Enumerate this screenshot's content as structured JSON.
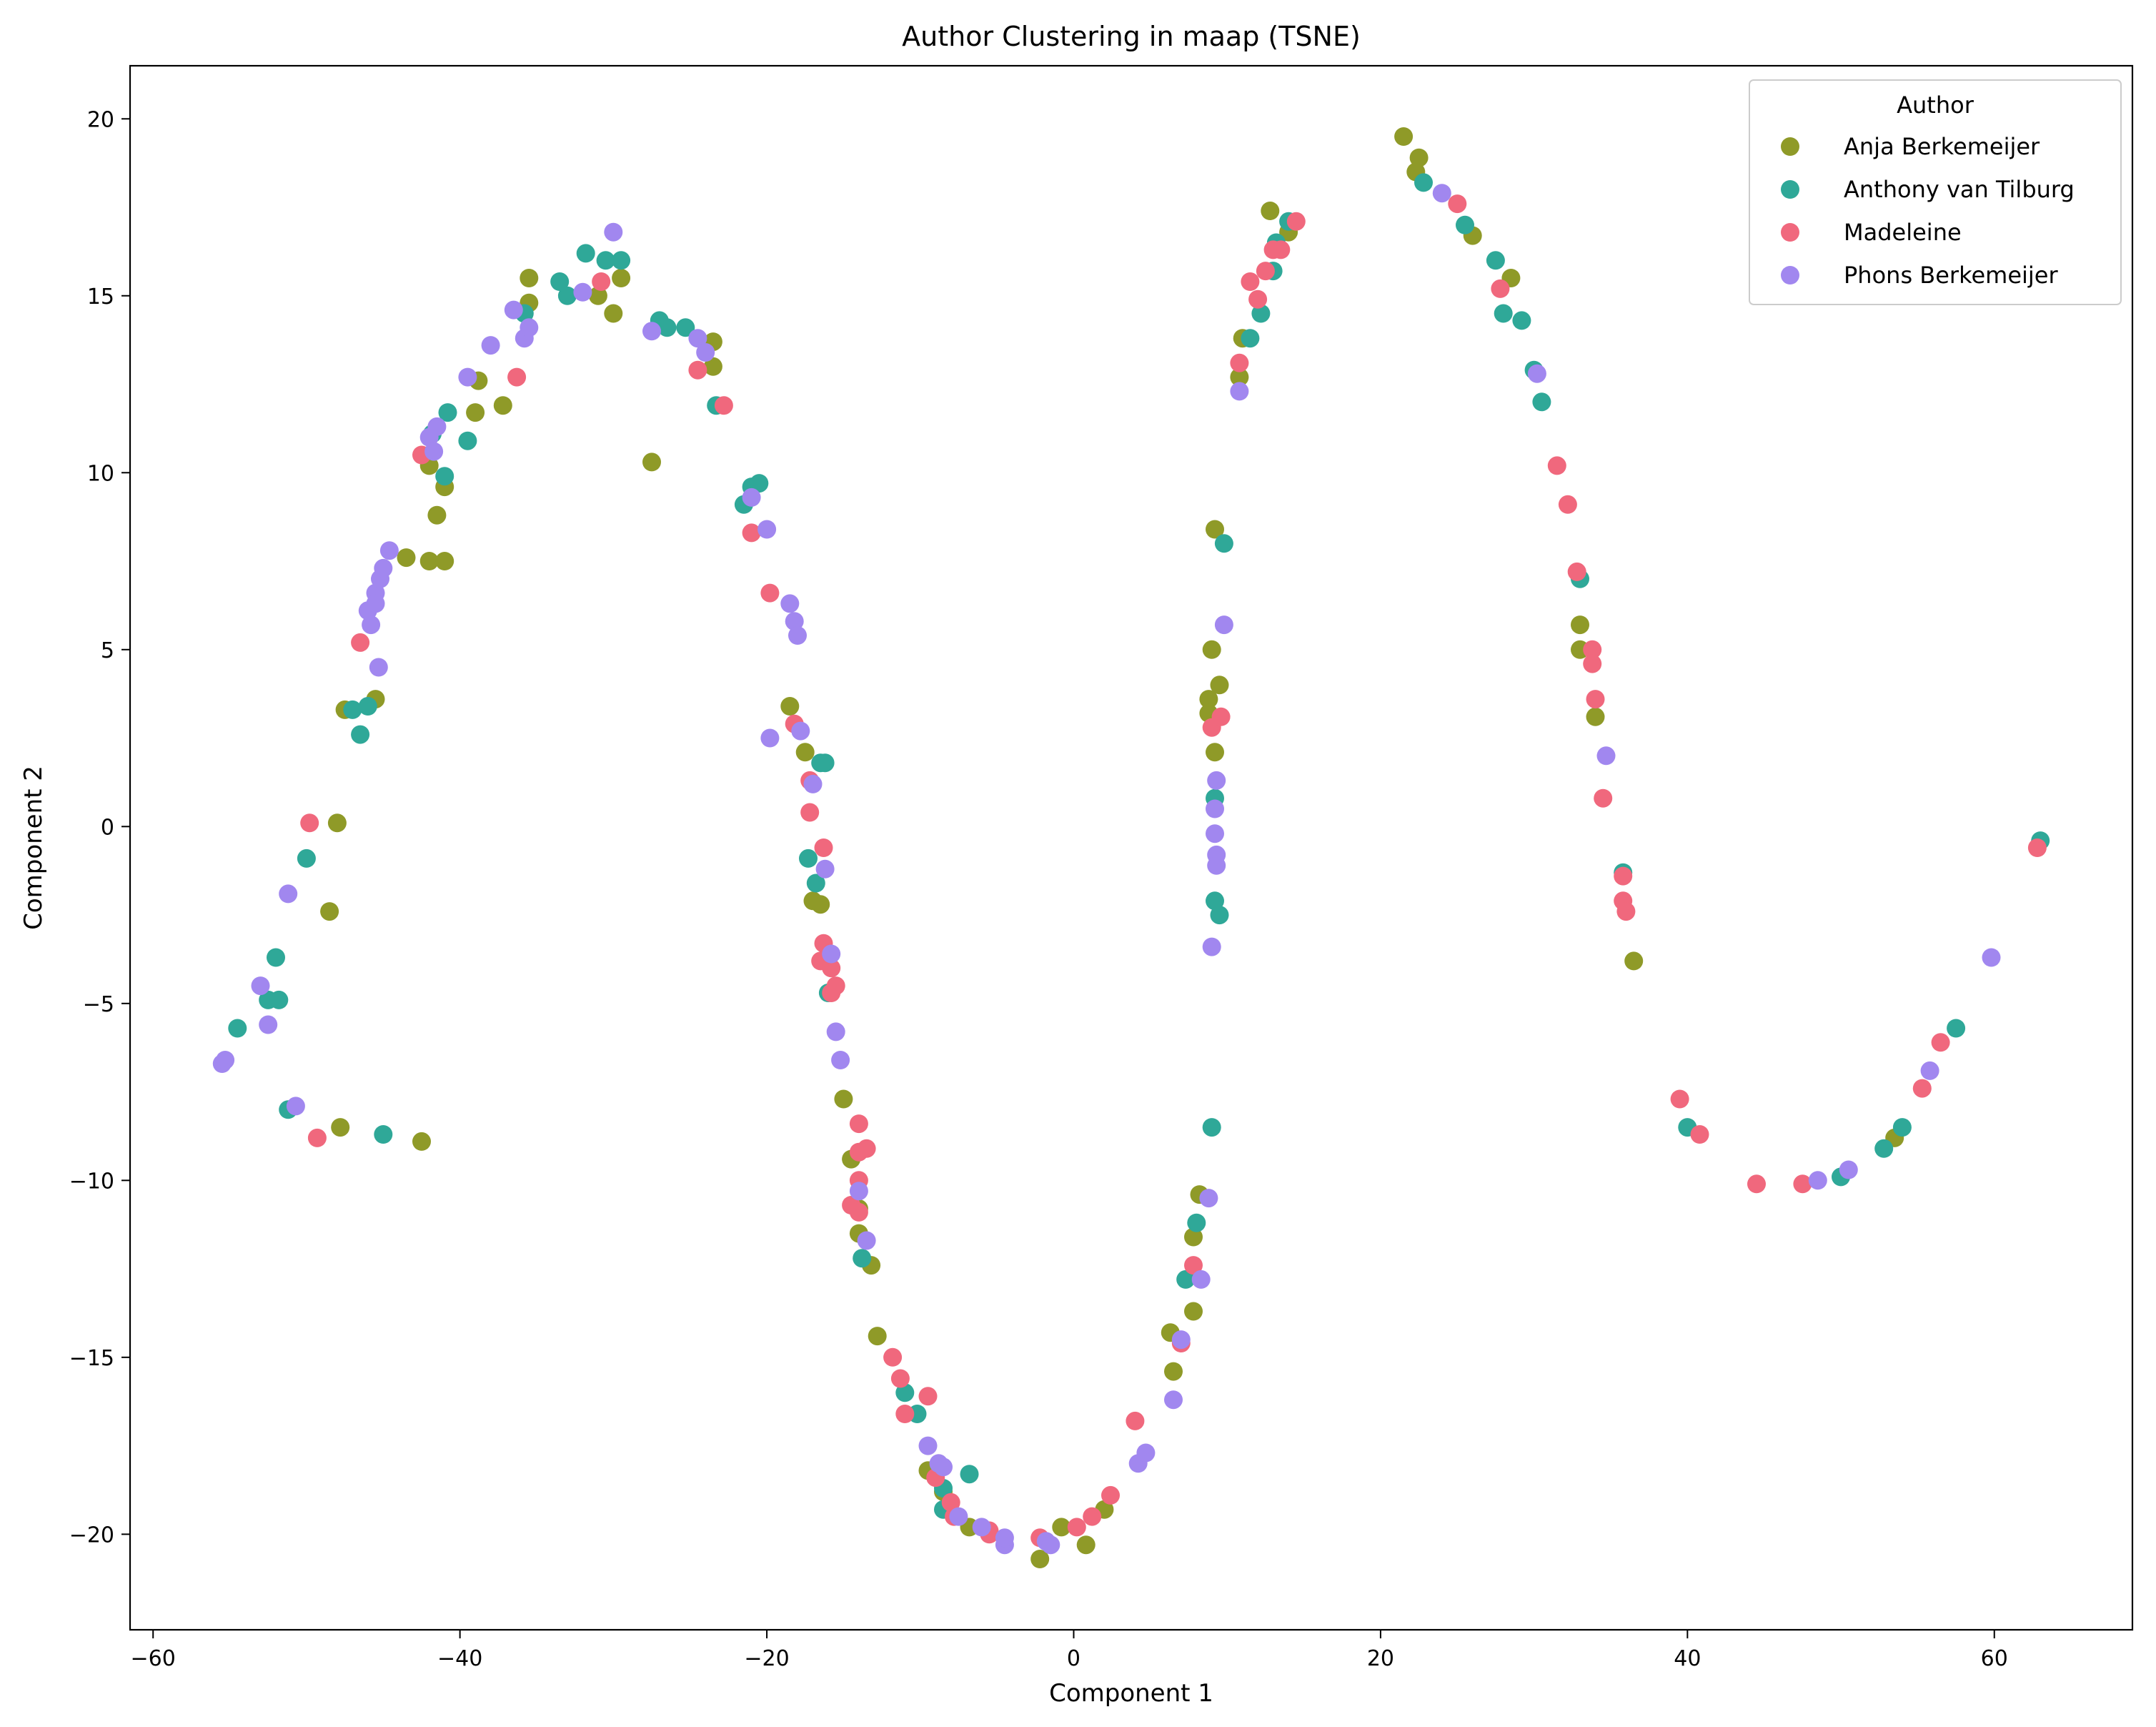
{
  "chart_data": {
    "type": "scatter",
    "title": "Author Clustering in maap (TSNE)",
    "xlabel": "Component 1",
    "ylabel": "Component 2",
    "xlim": [
      -61.5,
      69
    ],
    "ylim": [
      -22.7,
      21.5
    ],
    "xticks": [
      -60,
      -40,
      -20,
      0,
      20,
      40,
      60
    ],
    "yticks": [
      -20,
      -15,
      -10,
      -5,
      0,
      5,
      10,
      15,
      20
    ],
    "grid": false,
    "legend": {
      "title": "Author",
      "position": "top-right"
    },
    "series": [
      {
        "name": "Anja Berkemeijer",
        "color": "#8f9a28",
        "points": [
          [
            -47.5,
            3.3
          ],
          [
            -45.5,
            3.6
          ],
          [
            -48.0,
            0.1
          ],
          [
            -48.5,
            -2.4
          ],
          [
            -47.8,
            -8.5
          ],
          [
            -42.5,
            -8.9
          ],
          [
            -42.0,
            7.5
          ],
          [
            -41.0,
            7.5
          ],
          [
            -43.5,
            7.6
          ],
          [
            -41.5,
            8.8
          ],
          [
            -41.0,
            9.6
          ],
          [
            -42.0,
            10.2
          ],
          [
            -39.0,
            11.7
          ],
          [
            -37.2,
            11.9
          ],
          [
            -38.8,
            12.6
          ],
          [
            -35.5,
            14.8
          ],
          [
            -35.5,
            15.5
          ],
          [
            -31.0,
            15.0
          ],
          [
            -30.0,
            14.5
          ],
          [
            -29.5,
            15.5
          ],
          [
            -27.5,
            10.3
          ],
          [
            -23.5,
            13.7
          ],
          [
            -23.5,
            13.0
          ],
          [
            -18.5,
            3.4
          ],
          [
            -17.5,
            2.1
          ],
          [
            -16.5,
            -2.2
          ],
          [
            -17.0,
            -2.1
          ],
          [
            -15.0,
            -7.7
          ],
          [
            -14.5,
            -9.4
          ],
          [
            -14.0,
            -10.8
          ],
          [
            -14.0,
            -11.5
          ],
          [
            -13.2,
            -12.4
          ],
          [
            -12.8,
            -14.4
          ],
          [
            -9.5,
            -18.2
          ],
          [
            -8.5,
            -18.8
          ],
          [
            -6.8,
            -19.8
          ],
          [
            -2.2,
            -20.7
          ],
          [
            -0.8,
            -19.8
          ],
          [
            0.8,
            -20.3
          ],
          [
            2.0,
            -19.3
          ],
          [
            6.3,
            -14.3
          ],
          [
            6.5,
            -15.4
          ],
          [
            7.8,
            -13.7
          ],
          [
            7.8,
            -11.6
          ],
          [
            8.2,
            -10.4
          ],
          [
            8.8,
            3.6
          ],
          [
            9.0,
            5.0
          ],
          [
            9.5,
            4.0
          ],
          [
            9.2,
            2.1
          ],
          [
            9.2,
            8.4
          ],
          [
            10.8,
            12.7
          ],
          [
            11.0,
            13.8
          ],
          [
            12.8,
            17.4
          ],
          [
            14.0,
            16.8
          ],
          [
            21.5,
            19.5
          ],
          [
            22.5,
            18.9
          ],
          [
            22.3,
            18.5
          ],
          [
            26.0,
            16.7
          ],
          [
            28.5,
            15.5
          ],
          [
            33.0,
            5.7
          ],
          [
            33.0,
            5.0
          ],
          [
            34.0,
            3.1
          ],
          [
            36.5,
            -3.8
          ],
          [
            53.5,
            -8.8
          ],
          [
            8.8,
            3.2
          ]
        ]
      },
      {
        "name": "Anthony van Tilburg",
        "color": "#2fa898",
        "points": [
          [
            -54.5,
            -5.7
          ],
          [
            -52.5,
            -4.9
          ],
          [
            -52.0,
            -3.7
          ],
          [
            -51.8,
            -4.9
          ],
          [
            -51.2,
            -8.0
          ],
          [
            -50.0,
            -0.9
          ],
          [
            -47.0,
            3.3
          ],
          [
            -46.5,
            2.6
          ],
          [
            -46.0,
            3.4
          ],
          [
            -45.0,
            -8.7
          ],
          [
            -41.8,
            11.1
          ],
          [
            -41.0,
            9.9
          ],
          [
            -40.8,
            11.7
          ],
          [
            -39.5,
            10.9
          ],
          [
            -35.8,
            14.5
          ],
          [
            -33.5,
            15.4
          ],
          [
            -33.0,
            15.0
          ],
          [
            -31.8,
            16.2
          ],
          [
            -30.5,
            16.0
          ],
          [
            -29.5,
            16.0
          ],
          [
            -27.0,
            14.3
          ],
          [
            -26.5,
            14.1
          ],
          [
            -25.3,
            14.1
          ],
          [
            -23.3,
            11.9
          ],
          [
            -21.5,
            9.1
          ],
          [
            -21.0,
            9.6
          ],
          [
            -20.5,
            9.7
          ],
          [
            -17.3,
            -0.9
          ],
          [
            -16.5,
            1.8
          ],
          [
            -16.2,
            1.8
          ],
          [
            -16.8,
            -1.6
          ],
          [
            -16.0,
            -4.7
          ],
          [
            -13.8,
            -12.2
          ],
          [
            -11.0,
            -16.0
          ],
          [
            -10.2,
            -16.6
          ],
          [
            -8.5,
            -19.3
          ],
          [
            -6.8,
            -18.3
          ],
          [
            -8.5,
            -18.7
          ],
          [
            7.3,
            -12.8
          ],
          [
            8.0,
            -11.2
          ],
          [
            9.0,
            -8.5
          ],
          [
            9.2,
            0.8
          ],
          [
            9.2,
            -2.1
          ],
          [
            9.5,
            -2.5
          ],
          [
            9.8,
            8.0
          ],
          [
            11.5,
            13.8
          ],
          [
            12.2,
            14.5
          ],
          [
            13.0,
            15.7
          ],
          [
            13.2,
            16.5
          ],
          [
            14.0,
            17.1
          ],
          [
            22.8,
            18.2
          ],
          [
            25.5,
            17.0
          ],
          [
            27.5,
            16.0
          ],
          [
            28.0,
            14.5
          ],
          [
            29.2,
            14.3
          ],
          [
            30.0,
            12.9
          ],
          [
            30.5,
            12.0
          ],
          [
            33.0,
            7.0
          ],
          [
            35.8,
            -1.3
          ],
          [
            40.0,
            -8.5
          ],
          [
            50.0,
            -9.9
          ],
          [
            52.8,
            -9.1
          ],
          [
            54.0,
            -8.5
          ],
          [
            57.5,
            -5.7
          ],
          [
            63.0,
            -0.4
          ]
        ]
      },
      {
        "name": "Madeleine",
        "color": "#f0687d",
        "points": [
          [
            -49.8,
            0.1
          ],
          [
            -49.3,
            -8.8
          ],
          [
            -46.5,
            5.2
          ],
          [
            -42.5,
            10.5
          ],
          [
            -36.3,
            12.7
          ],
          [
            -30.8,
            15.4
          ],
          [
            -24.5,
            12.9
          ],
          [
            -22.8,
            11.9
          ],
          [
            -21.0,
            8.3
          ],
          [
            -19.8,
            6.6
          ],
          [
            -18.2,
            2.9
          ],
          [
            -17.2,
            1.3
          ],
          [
            -17.2,
            0.4
          ],
          [
            -16.3,
            -0.6
          ],
          [
            -16.3,
            -3.3
          ],
          [
            -16.5,
            -3.8
          ],
          [
            -15.8,
            -4.0
          ],
          [
            -15.5,
            -4.5
          ],
          [
            -15.8,
            -4.7
          ],
          [
            -14.0,
            -8.4
          ],
          [
            -14.0,
            -10.0
          ],
          [
            -13.5,
            -9.1
          ],
          [
            -14.0,
            -9.2
          ],
          [
            -14.5,
            -10.7
          ],
          [
            -14.0,
            -10.9
          ],
          [
            -11.8,
            -15.0
          ],
          [
            -11.3,
            -15.6
          ],
          [
            -11.0,
            -16.6
          ],
          [
            -9.5,
            -16.1
          ],
          [
            -9.0,
            -18.4
          ],
          [
            -8.0,
            -19.1
          ],
          [
            -7.8,
            -19.5
          ],
          [
            -5.5,
            -19.9
          ],
          [
            -5.5,
            -20.0
          ],
          [
            -2.2,
            -20.1
          ],
          [
            0.2,
            -19.8
          ],
          [
            1.2,
            -19.5
          ],
          [
            2.4,
            -18.9
          ],
          [
            4.0,
            -16.8
          ],
          [
            7.0,
            -14.6
          ],
          [
            7.8,
            -12.4
          ],
          [
            9.0,
            2.8
          ],
          [
            9.6,
            3.1
          ],
          [
            10.8,
            13.1
          ],
          [
            11.5,
            15.4
          ],
          [
            12.0,
            14.9
          ],
          [
            12.5,
            15.7
          ],
          [
            13.0,
            16.3
          ],
          [
            13.5,
            16.3
          ],
          [
            14.5,
            17.1
          ],
          [
            25.0,
            17.6
          ],
          [
            27.8,
            15.2
          ],
          [
            31.5,
            10.2
          ],
          [
            32.2,
            9.1
          ],
          [
            32.8,
            7.2
          ],
          [
            33.8,
            5.0
          ],
          [
            33.8,
            4.6
          ],
          [
            34.0,
            3.6
          ],
          [
            34.5,
            0.8
          ],
          [
            35.8,
            -1.4
          ],
          [
            35.8,
            -2.1
          ],
          [
            36.0,
            -2.4
          ],
          [
            39.5,
            -7.7
          ],
          [
            40.8,
            -8.7
          ],
          [
            44.5,
            -10.1
          ],
          [
            47.5,
            -10.1
          ],
          [
            55.3,
            -7.4
          ],
          [
            56.5,
            -6.1
          ],
          [
            62.8,
            -0.6
          ]
        ]
      },
      {
        "name": "Phons Berkemeijer",
        "color": "#a187ef",
        "points": [
          [
            -55.5,
            -6.7
          ],
          [
            -55.3,
            -6.6
          ],
          [
            -53.0,
            -4.5
          ],
          [
            -52.5,
            -5.6
          ],
          [
            -51.2,
            -1.9
          ],
          [
            -50.7,
            -7.9
          ],
          [
            -46.0,
            6.1
          ],
          [
            -45.8,
            5.7
          ],
          [
            -45.5,
            6.6
          ],
          [
            -45.5,
            6.3
          ],
          [
            -45.3,
            4.5
          ],
          [
            -45.2,
            7.0
          ],
          [
            -45.0,
            7.3
          ],
          [
            -44.6,
            7.8
          ],
          [
            -42.0,
            11.0
          ],
          [
            -41.5,
            11.3
          ],
          [
            -41.7,
            10.6
          ],
          [
            -39.5,
            12.7
          ],
          [
            -38.0,
            13.6
          ],
          [
            -36.5,
            14.6
          ],
          [
            -35.8,
            13.8
          ],
          [
            -35.5,
            14.1
          ],
          [
            -32.0,
            15.1
          ],
          [
            -30.0,
            16.8
          ],
          [
            -27.5,
            14.0
          ],
          [
            -24.5,
            13.8
          ],
          [
            -24.0,
            13.4
          ],
          [
            -21.0,
            9.3
          ],
          [
            -20.0,
            8.4
          ],
          [
            -19.8,
            2.5
          ],
          [
            -18.5,
            6.3
          ],
          [
            -18.2,
            5.8
          ],
          [
            -18.0,
            5.4
          ],
          [
            -17.8,
            2.7
          ],
          [
            -17.0,
            1.2
          ],
          [
            -16.2,
            -1.2
          ],
          [
            -15.8,
            -3.6
          ],
          [
            -15.5,
            -5.8
          ],
          [
            -15.2,
            -6.6
          ],
          [
            -14.0,
            -10.3
          ],
          [
            -13.5,
            -11.7
          ],
          [
            -9.5,
            -17.5
          ],
          [
            -8.8,
            -18.0
          ],
          [
            -8.5,
            -18.1
          ],
          [
            -7.5,
            -19.5
          ],
          [
            -6.0,
            -19.8
          ],
          [
            -4.5,
            -20.3
          ],
          [
            -4.5,
            -20.1
          ],
          [
            -1.8,
            -20.2
          ],
          [
            -1.5,
            -20.3
          ],
          [
            4.2,
            -18.0
          ],
          [
            4.7,
            -17.7
          ],
          [
            6.5,
            -16.2
          ],
          [
            7.0,
            -14.5
          ],
          [
            8.3,
            -12.8
          ],
          [
            8.8,
            -10.5
          ],
          [
            9.0,
            -3.4
          ],
          [
            9.2,
            -0.2
          ],
          [
            9.2,
            0.5
          ],
          [
            9.3,
            1.3
          ],
          [
            9.3,
            -0.8
          ],
          [
            9.3,
            -1.1
          ],
          [
            9.8,
            5.7
          ],
          [
            10.8,
            12.3
          ],
          [
            24.0,
            17.9
          ],
          [
            30.2,
            12.8
          ],
          [
            34.7,
            2.0
          ],
          [
            48.5,
            -10.0
          ],
          [
            50.5,
            -9.7
          ],
          [
            55.8,
            -6.9
          ],
          [
            59.8,
            -3.7
          ]
        ]
      }
    ]
  }
}
